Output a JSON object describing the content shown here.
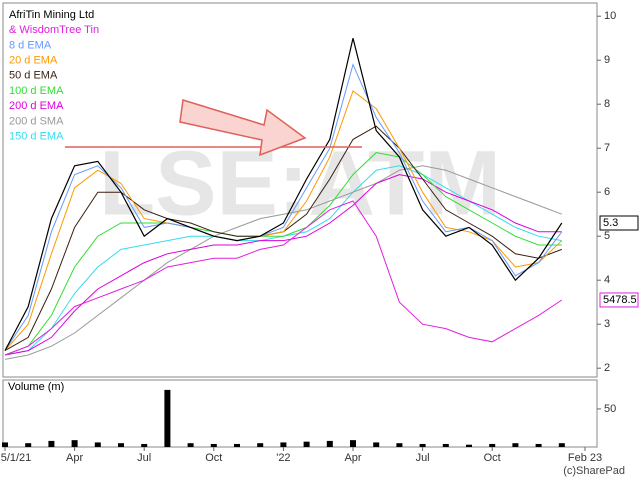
{
  "chart_data": [
    {
      "type": "line",
      "watermark": "LSE:ATM",
      "copyright": "(c)SharePad",
      "categories": [
        "5/1/21",
        null,
        null,
        "Apr",
        null,
        null,
        "Jul",
        null,
        null,
        "Oct",
        null,
        null,
        "'22",
        null,
        null,
        "Apr",
        null,
        null,
        "Jul",
        null,
        null,
        "Oct",
        null,
        null,
        null,
        "Feb 23"
      ],
      "ylim": [
        1.8,
        10.3
      ],
      "yticks": [
        2,
        3,
        4,
        5,
        6,
        7,
        8,
        9,
        10
      ],
      "y2lim": [
        2777,
        15893
      ],
      "grid": false,
      "series": [
        {
          "name": "AfriTin Mining Ltd",
          "color": "#000000",
          "width": 1.2,
          "last_label": true,
          "values": [
            2.4,
            3.4,
            5.4,
            6.6,
            6.7,
            6.0,
            5.0,
            5.4,
            5.2,
            5.0,
            4.9,
            5.0,
            5.3,
            6.3,
            7.2,
            9.5,
            7.4,
            6.8,
            5.6,
            5.0,
            5.2,
            4.8,
            4.0,
            4.5,
            5.3,
            null
          ]
        },
        {
          "name": "& WisdomTree Tin",
          "color": "#e020e0",
          "width": 1,
          "axis": "y2",
          "last_label": true,
          "values": [
            3549,
            3858,
            4475,
            5246,
            5555,
            5863,
            6172,
            6635,
            6789,
            6944,
            6944,
            7252,
            7406,
            8024,
            8641,
            8949,
            7715,
            5401,
            4629,
            4475,
            4166,
            4012,
            4475,
            4938,
            5478.5,
            null
          ]
        },
        {
          "name": "8 d EMA",
          "color": "#6699ff",
          "width": 1,
          "values": [
            2.4,
            3.2,
            5.1,
            6.4,
            6.6,
            6.1,
            5.2,
            5.3,
            5.2,
            5.0,
            4.9,
            5.0,
            5.2,
            6.1,
            7.0,
            8.9,
            7.7,
            6.9,
            5.8,
            5.1,
            5.2,
            4.9,
            4.1,
            4.4,
            5.1,
            null
          ]
        },
        {
          "name": "20 d EMA",
          "color": "#ff9900",
          "width": 1,
          "values": [
            2.4,
            3.0,
            4.6,
            6.1,
            6.5,
            6.2,
            5.4,
            5.3,
            5.2,
            5.0,
            4.9,
            5.0,
            5.1,
            5.8,
            6.8,
            8.3,
            7.9,
            7.0,
            6.0,
            5.2,
            5.1,
            4.9,
            4.3,
            4.4,
            4.9,
            null
          ]
        },
        {
          "name": "50 d EMA",
          "color": "#3a1f10",
          "width": 1,
          "values": [
            2.4,
            2.7,
            3.8,
            5.2,
            6.0,
            6.0,
            5.6,
            5.4,
            5.3,
            5.1,
            5.0,
            5.0,
            5.1,
            5.5,
            6.3,
            7.2,
            7.5,
            7.0,
            6.3,
            5.6,
            5.3,
            5.0,
            4.6,
            4.5,
            4.7,
            null
          ]
        },
        {
          "name": "100 d EMA",
          "color": "#33dd33",
          "width": 1,
          "values": [
            2.3,
            2.5,
            3.2,
            4.3,
            5.0,
            5.3,
            5.3,
            5.3,
            5.2,
            5.1,
            5.0,
            5.0,
            5.0,
            5.2,
            5.7,
            6.4,
            6.9,
            6.8,
            6.4,
            5.9,
            5.6,
            5.3,
            5.0,
            4.8,
            4.8,
            null
          ]
        },
        {
          "name": "200 d EMA",
          "color": "#dd00dd",
          "width": 1,
          "values": [
            2.3,
            2.4,
            2.7,
            3.3,
            3.8,
            4.1,
            4.4,
            4.6,
            4.7,
            4.8,
            4.8,
            4.9,
            4.9,
            5.0,
            5.3,
            5.7,
            6.2,
            6.4,
            6.3,
            6.0,
            5.8,
            5.6,
            5.3,
            5.1,
            5.1,
            null
          ]
        },
        {
          "name": "200 d SMA",
          "color": "#999999",
          "width": 1,
          "values": [
            2.2,
            2.3,
            2.5,
            2.8,
            3.2,
            3.6,
            4.0,
            4.4,
            4.7,
            5.0,
            5.2,
            5.4,
            5.5,
            5.6,
            5.8,
            6.0,
            6.2,
            6.5,
            6.6,
            6.5,
            6.3,
            6.1,
            5.9,
            5.7,
            5.5,
            null
          ]
        },
        {
          "name": "150 d EMA",
          "color": "#33ddee",
          "width": 1,
          "values": [
            2.3,
            2.4,
            2.9,
            3.7,
            4.3,
            4.7,
            4.8,
            4.9,
            5.0,
            5.0,
            4.9,
            4.9,
            5.0,
            5.1,
            5.4,
            6.0,
            6.5,
            6.6,
            6.4,
            6.1,
            5.8,
            5.5,
            5.2,
            5.0,
            4.9,
            null
          ]
        }
      ]
    },
    {
      "type": "bar",
      "title": "Volume (m)",
      "color": "#000000",
      "ylim": [
        0,
        88
      ],
      "yticks": [
        50
      ],
      "values": [
        6,
        5,
        8,
        9,
        6,
        5,
        4,
        75,
        5,
        4,
        4,
        5,
        6,
        7,
        8,
        9,
        6,
        5,
        4,
        4,
        3,
        4,
        5,
        4,
        5,
        null
      ]
    }
  ]
}
